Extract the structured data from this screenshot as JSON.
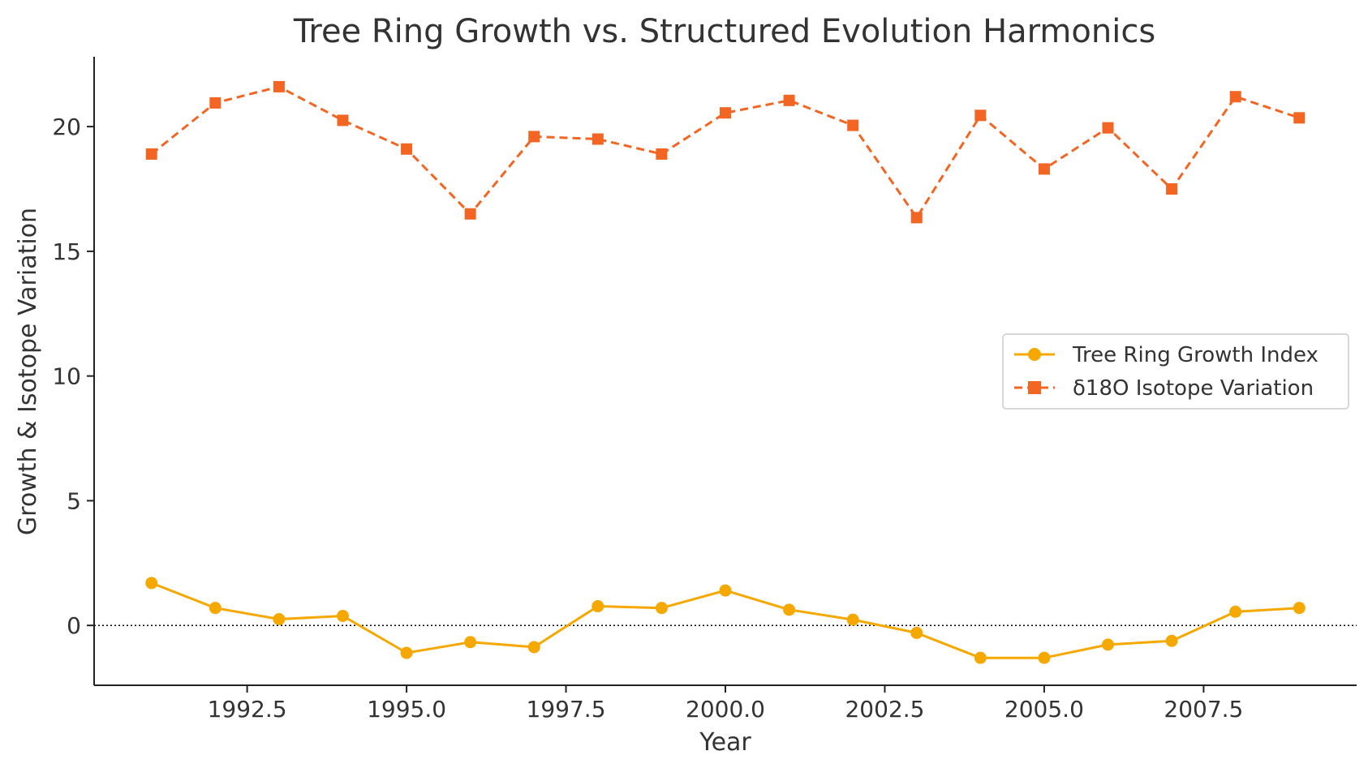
{
  "chart_data": {
    "type": "line",
    "title": "Tree Ring Growth vs. Structured Evolution Harmonics",
    "xlabel": "Year",
    "ylabel": "Growth & Isotope Variation",
    "xlim": [
      1990.1,
      2009.9
    ],
    "ylim": [
      -2.4,
      22.8
    ],
    "xticks": [
      1992.5,
      1995.0,
      1997.5,
      2000.0,
      2002.5,
      2005.0,
      2007.5
    ],
    "xtick_labels": [
      "1992.5",
      "1995.0",
      "1997.5",
      "2000.0",
      "2002.5",
      "2005.0",
      "2007.5"
    ],
    "yticks": [
      0,
      5,
      10,
      15,
      20
    ],
    "ytick_labels": [
      "0",
      "5",
      "10",
      "15",
      "20"
    ],
    "zero_reference_line": true,
    "grid": false,
    "legend_position": "center-right",
    "x": [
      1991,
      1992,
      1993,
      1994,
      1995,
      1996,
      1997,
      1998,
      1999,
      2000,
      2001,
      2002,
      2003,
      2004,
      2005,
      2006,
      2007,
      2008,
      2009
    ],
    "series": [
      {
        "name": "Tree Ring Growth Index",
        "color": "#F5A800",
        "line_style": "solid",
        "marker": "circle",
        "values": [
          1.7,
          0.7,
          0.25,
          0.38,
          -1.1,
          -0.67,
          -0.87,
          0.77,
          0.7,
          1.4,
          0.63,
          0.23,
          -0.3,
          -1.3,
          -1.3,
          -0.77,
          -0.62,
          0.55,
          0.7
        ]
      },
      {
        "name": "δ18O Isotope Variation",
        "color": "#F26522",
        "line_style": "dashed",
        "marker": "square",
        "values": [
          18.9,
          20.95,
          21.6,
          20.25,
          19.1,
          16.5,
          19.6,
          19.5,
          18.9,
          20.55,
          21.05,
          20.05,
          16.35,
          20.45,
          18.3,
          19.95,
          17.5,
          21.2,
          20.35
        ]
      }
    ]
  }
}
